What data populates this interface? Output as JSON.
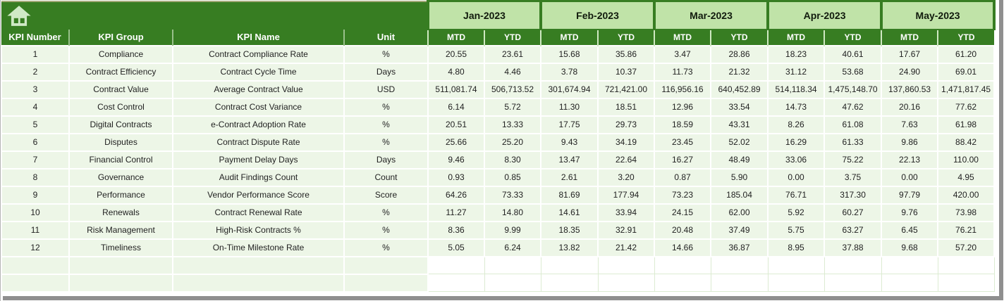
{
  "colors": {
    "dark-green": "#377d22",
    "month-green": "#c0e3a8",
    "row-green": "#edf6e7",
    "grid-white": "#ffffff",
    "empty-grid": "#dcebd2",
    "icon-green": "#cfe9c6",
    "frame-gray": "#8f8f8f",
    "text-dark": "#1f1f1f"
  },
  "table": {
    "left_headers": [
      "KPI Number",
      "KPI Group",
      "KPI Name",
      "Unit"
    ],
    "months": [
      "Jan-2023",
      "Feb-2023",
      "Mar-2023",
      "Apr-2023",
      "May-2023"
    ],
    "sub_headers": [
      "MTD",
      "YTD"
    ],
    "empty_row_count": 2,
    "rows": [
      {
        "kpi_number": "1",
        "kpi_group": "Compliance",
        "kpi_name": "Contract Compliance Rate",
        "unit": "%",
        "values": [
          "20.55",
          "23.61",
          "15.68",
          "35.86",
          "3.47",
          "28.86",
          "18.23",
          "40.61",
          "17.67",
          "61.20"
        ]
      },
      {
        "kpi_number": "2",
        "kpi_group": "Contract Efficiency",
        "kpi_name": "Contract Cycle Time",
        "unit": "Days",
        "values": [
          "4.80",
          "4.46",
          "3.78",
          "10.37",
          "11.73",
          "21.32",
          "31.12",
          "53.68",
          "24.90",
          "69.01"
        ]
      },
      {
        "kpi_number": "3",
        "kpi_group": "Contract Value",
        "kpi_name": "Average Contract Value",
        "unit": "USD",
        "values": [
          "511,081.74",
          "506,713.52",
          "301,674.94",
          "721,421.00",
          "116,956.16",
          "640,452.89",
          "514,118.34",
          "1,475,148.70",
          "137,860.53",
          "1,471,817.45"
        ]
      },
      {
        "kpi_number": "4",
        "kpi_group": "Cost Control",
        "kpi_name": "Contract Cost Variance",
        "unit": "%",
        "values": [
          "6.14",
          "5.72",
          "11.30",
          "18.51",
          "12.96",
          "33.54",
          "14.73",
          "47.62",
          "20.16",
          "77.62"
        ]
      },
      {
        "kpi_number": "5",
        "kpi_group": "Digital Contracts",
        "kpi_name": "e-Contract Adoption Rate",
        "unit": "%",
        "values": [
          "20.51",
          "13.33",
          "17.75",
          "29.73",
          "18.59",
          "43.31",
          "8.26",
          "61.08",
          "7.63",
          "61.98"
        ]
      },
      {
        "kpi_number": "6",
        "kpi_group": "Disputes",
        "kpi_name": "Contract Dispute Rate",
        "unit": "%",
        "values": [
          "25.66",
          "25.20",
          "9.43",
          "34.19",
          "23.45",
          "52.02",
          "16.29",
          "61.33",
          "9.86",
          "88.42"
        ]
      },
      {
        "kpi_number": "7",
        "kpi_group": "Financial Control",
        "kpi_name": "Payment Delay Days",
        "unit": "Days",
        "values": [
          "9.46",
          "8.30",
          "13.47",
          "22.64",
          "16.27",
          "48.49",
          "33.06",
          "75.22",
          "22.13",
          "110.00"
        ]
      },
      {
        "kpi_number": "8",
        "kpi_group": "Governance",
        "kpi_name": "Audit Findings Count",
        "unit": "Count",
        "values": [
          "0.93",
          "0.85",
          "2.61",
          "3.20",
          "0.87",
          "5.90",
          "0.00",
          "3.75",
          "0.00",
          "4.95"
        ]
      },
      {
        "kpi_number": "9",
        "kpi_group": "Performance",
        "kpi_name": "Vendor Performance Score",
        "unit": "Score",
        "values": [
          "64.26",
          "73.33",
          "81.69",
          "177.94",
          "73.23",
          "185.04",
          "76.71",
          "317.30",
          "97.79",
          "420.00"
        ]
      },
      {
        "kpi_number": "10",
        "kpi_group": "Renewals",
        "kpi_name": "Contract Renewal Rate",
        "unit": "%",
        "values": [
          "11.27",
          "14.80",
          "14.61",
          "33.94",
          "24.15",
          "62.00",
          "5.92",
          "60.27",
          "9.76",
          "73.98"
        ]
      },
      {
        "kpi_number": "11",
        "kpi_group": "Risk Management",
        "kpi_name": "High-Risk Contracts %",
        "unit": "%",
        "values": [
          "8.36",
          "9.99",
          "18.35",
          "32.91",
          "20.48",
          "37.49",
          "5.75",
          "63.27",
          "6.45",
          "76.21"
        ]
      },
      {
        "kpi_number": "12",
        "kpi_group": "Timeliness",
        "kpi_name": "On-Time Milestone Rate",
        "unit": "%",
        "values": [
          "5.05",
          "6.24",
          "13.82",
          "21.42",
          "14.66",
          "36.87",
          "8.95",
          "37.88",
          "9.68",
          "57.20"
        ]
      }
    ]
  }
}
